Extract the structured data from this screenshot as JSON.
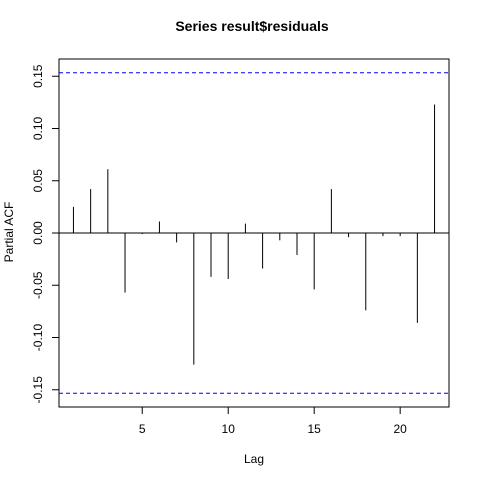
{
  "chart_data": {
    "type": "bar",
    "title": "Series  result$residuals",
    "xlabel": "Lag",
    "ylabel": "Partial ACF",
    "xlim": [
      0.16,
      22.84
    ],
    "ylim": [
      -0.1665,
      0.1665
    ],
    "x_ticks": [
      5,
      10,
      15,
      20
    ],
    "x_tick_labels": [
      "5",
      "10",
      "15",
      "20"
    ],
    "y_ticks": [
      -0.15,
      -0.1,
      -0.05,
      0.0,
      0.05,
      0.1,
      0.15
    ],
    "y_tick_labels": [
      "-0.15",
      "-0.10",
      "-0.05",
      "0.00",
      "0.05",
      "0.10",
      "0.15"
    ],
    "grid": false,
    "series": [
      {
        "x": [
          1,
          2,
          3,
          4,
          5,
          6,
          7,
          8,
          9,
          10,
          11,
          12,
          13,
          14,
          15,
          16,
          17,
          18,
          19,
          20,
          21,
          22
        ],
        "values": [
          0.025,
          0.042,
          0.061,
          -0.057,
          -0.001,
          0.011,
          -0.009,
          -0.126,
          -0.042,
          -0.044,
          0.009,
          -0.034,
          -0.007,
          -0.021,
          -0.054,
          0.042,
          -0.004,
          -0.074,
          -0.003,
          -0.003,
          -0.086,
          0.123
        ]
      }
    ],
    "confidence_bounds": [
      0.1533,
      -0.1533
    ],
    "colors": {
      "bars": "#000000",
      "bounds": "#0000ff",
      "zero_line": "#000000",
      "axes": "#000000"
    }
  }
}
